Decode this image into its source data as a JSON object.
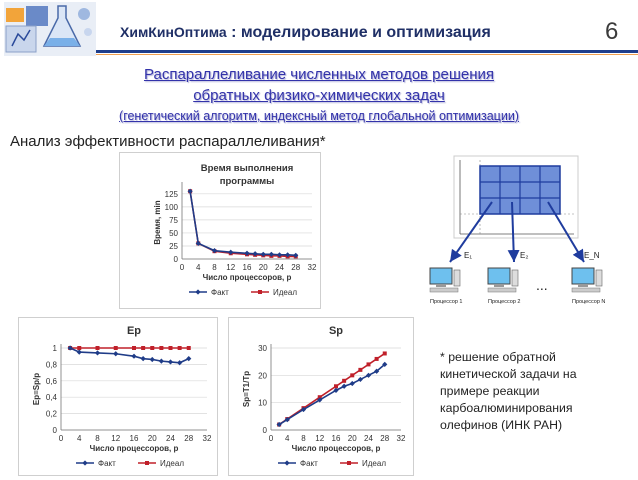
{
  "header": {
    "brand": "ХимКинОптима",
    "title_rest": ": моделирование и оптимизация",
    "slide_number": "6"
  },
  "subtitle": {
    "line1": "Распараллеливание численных методов решения",
    "line2": "обратных физико-химических задач",
    "line3": "(генетический алгоритм, индексный метод глобальной оптимизации)"
  },
  "section_title": "Анализ эффективности распараллеливания*",
  "note": {
    "line1": "* решение обратной",
    "line2": "кинетической задачи на",
    "line3": "примере реакции",
    "line4": "карбоалюминирования",
    "line5": "олефинов (ИНК РАН)"
  },
  "diagram": {
    "labels": [
      "E₁",
      "E₂",
      "E_N"
    ],
    "ellipsis": "...",
    "computers": [
      "Процессор 1",
      "Процессор 2",
      "Процессор N"
    ]
  },
  "colors": {
    "fact": "#1f3c88",
    "ideal": "#c0202a",
    "title": "#1f2f66",
    "subtitle": "#3333aa"
  },
  "chart_data": [
    {
      "type": "line",
      "title": [
        "Время выполнения",
        "программы"
      ],
      "xlabel": "Число процессоров, p",
      "ylabel": "Время, min",
      "xlim": [
        0,
        32
      ],
      "ylim": [
        0,
        140
      ],
      "xticks": [
        0,
        4,
        8,
        12,
        16,
        20,
        24,
        28,
        32
      ],
      "yticks": [
        0,
        25,
        50,
        75,
        100,
        125
      ],
      "legend": "bottom",
      "series": [
        {
          "name": "Факт",
          "x": [
            2,
            4,
            8,
            12,
            16,
            18,
            20,
            22,
            24,
            26,
            28
          ],
          "y": [
            130,
            30,
            16,
            13,
            11,
            10,
            9,
            9,
            8,
            8,
            7
          ]
        },
        {
          "name": "Идеал",
          "x": [
            2,
            4,
            8,
            12,
            16,
            18,
            20,
            22,
            24,
            26,
            28
          ],
          "y": [
            130,
            30,
            15,
            11,
            9,
            8,
            7,
            6,
            6,
            5,
            5
          ]
        }
      ]
    },
    {
      "type": "line",
      "title": [
        "Ep"
      ],
      "xlabel": "Число процессоров, p",
      "ylabel": "Ep=Sp/p",
      "xlim": [
        0,
        32
      ],
      "ylim": [
        0,
        1
      ],
      "xticks": [
        0,
        4,
        8,
        12,
        16,
        20,
        24,
        28,
        32
      ],
      "yticks": [
        0,
        0.2,
        0.4,
        0.6,
        0.8,
        1
      ],
      "ytick_labels": [
        "0",
        "0,2",
        "0,4",
        "0,6",
        "0,8",
        "1"
      ],
      "legend": "bottom",
      "series": [
        {
          "name": "Факт",
          "x": [
            2,
            4,
            8,
            12,
            16,
            18,
            20,
            22,
            24,
            26,
            28
          ],
          "y": [
            1.0,
            0.95,
            0.94,
            0.93,
            0.9,
            0.87,
            0.86,
            0.84,
            0.83,
            0.82,
            0.87
          ]
        },
        {
          "name": "Идеал",
          "x": [
            2,
            4,
            8,
            12,
            16,
            18,
            20,
            22,
            24,
            26,
            28
          ],
          "y": [
            1,
            1,
            1,
            1,
            1,
            1,
            1,
            1,
            1,
            1,
            1
          ]
        }
      ]
    },
    {
      "type": "line",
      "title": [
        "Sp"
      ],
      "xlabel": "Число процессоров, p",
      "ylabel": "Sp=T1/Tp",
      "xlim": [
        0,
        32
      ],
      "ylim": [
        0,
        30
      ],
      "xticks": [
        0,
        4,
        8,
        12,
        16,
        20,
        24,
        28,
        32
      ],
      "yticks": [
        0,
        10,
        20,
        30
      ],
      "legend": "bottom",
      "series": [
        {
          "name": "Факт",
          "x": [
            2,
            4,
            8,
            12,
            16,
            18,
            20,
            22,
            24,
            26,
            28
          ],
          "y": [
            2,
            3.8,
            7.5,
            11,
            14.5,
            16,
            17,
            18.5,
            20,
            21.5,
            24
          ]
        },
        {
          "name": "Идеал",
          "x": [
            2,
            4,
            8,
            12,
            16,
            18,
            20,
            22,
            24,
            26,
            28
          ],
          "y": [
            2,
            4,
            8,
            12,
            16,
            18,
            20,
            22,
            24,
            26,
            28
          ]
        }
      ]
    }
  ]
}
